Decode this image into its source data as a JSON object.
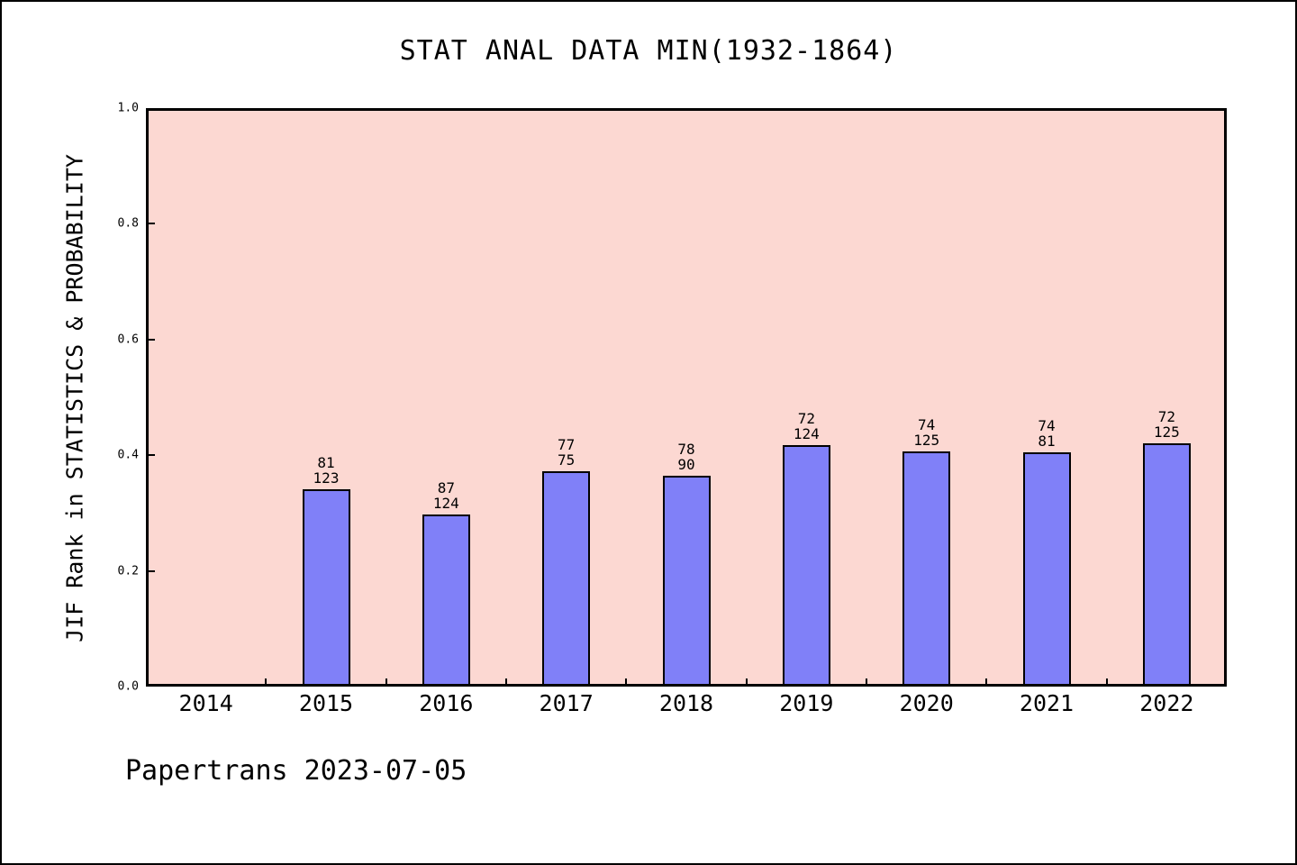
{
  "chart_data": {
    "type": "bar",
    "title": "STAT ANAL DATA MIN(1932-1864)",
    "ylabel": "JIF Rank in STATISTICS & PROBABILITY",
    "xlabel": "",
    "footer": "Papertrans 2023-07-05",
    "categories": [
      "2014",
      "2015",
      "2016",
      "2017",
      "2018",
      "2019",
      "2020",
      "2021",
      "2022"
    ],
    "values": [
      null,
      0.341,
      0.298,
      0.372,
      0.365,
      0.418,
      0.406,
      0.405,
      0.421
    ],
    "bar_labels": [
      null,
      [
        "81",
        "123"
      ],
      [
        "87",
        "124"
      ],
      [
        "77",
        "75"
      ],
      [
        "78",
        "90"
      ],
      [
        "72",
        "124"
      ],
      [
        "74",
        "125"
      ],
      [
        "74",
        "81"
      ],
      [
        "72",
        "125"
      ]
    ],
    "ylim": [
      0,
      1
    ],
    "yticks": [
      0.0,
      0.2,
      0.4,
      0.6,
      0.8,
      1.0
    ],
    "ytick_labels": [
      "0.0",
      "0.2",
      "0.4",
      "0.6",
      "0.8",
      "1.0"
    ],
    "grid": false,
    "legend": null,
    "colors": {
      "bar_fill": "#8080f8",
      "bar_edge": "#000000",
      "plot_bg": "#fcd8d2",
      "figure_bg": "#ffffff",
      "text": "#000000"
    }
  }
}
